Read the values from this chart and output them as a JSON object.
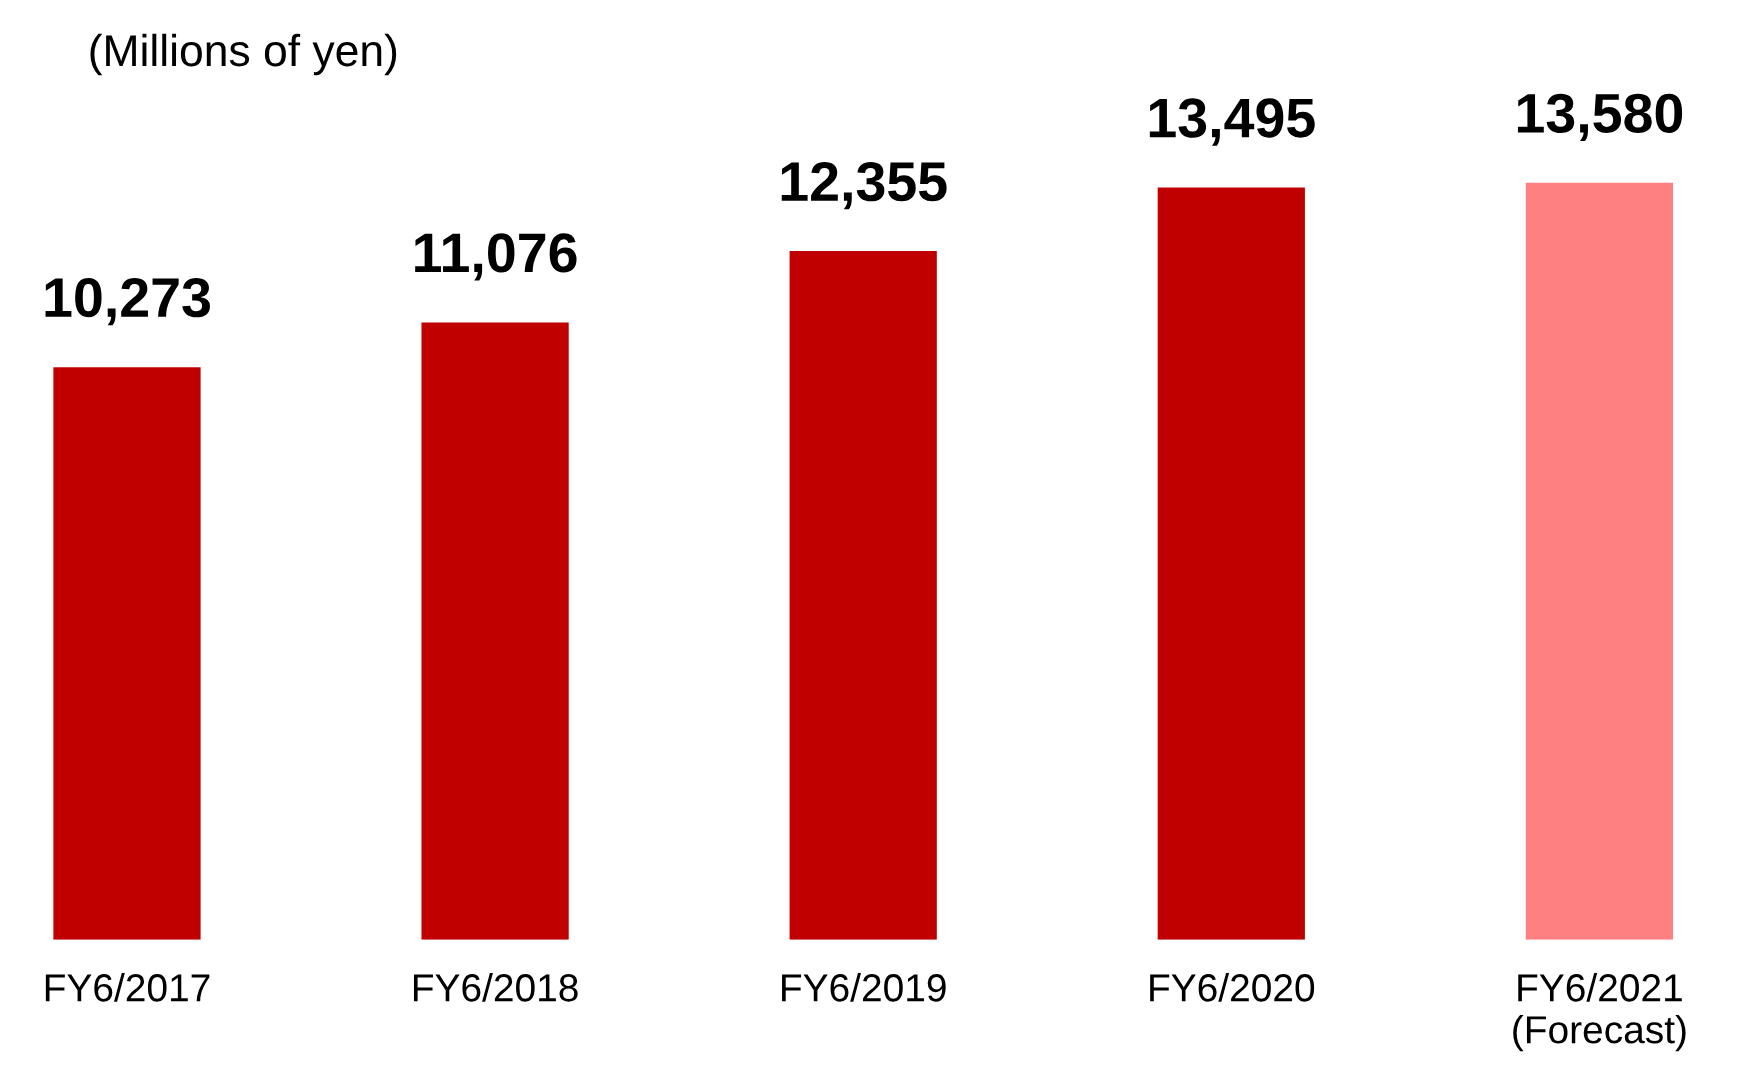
{
  "chart_data": {
    "type": "bar",
    "ylabel": "(Millions of yen)",
    "categories": [
      "FY6/2017",
      "FY6/2018",
      "FY6/2019",
      "FY6/2020",
      "FY6/2021\n(Forecast)"
    ],
    "values": [
      10273,
      11076,
      12355,
      13495,
      13580
    ],
    "colors": [
      "#c00000",
      "#c00000",
      "#c00000",
      "#c00000",
      "#ff8080"
    ],
    "value_labels": [
      "10,273",
      "11,076",
      "12,355",
      "13,495",
      "13,580"
    ],
    "tick_labels": "x"
  }
}
